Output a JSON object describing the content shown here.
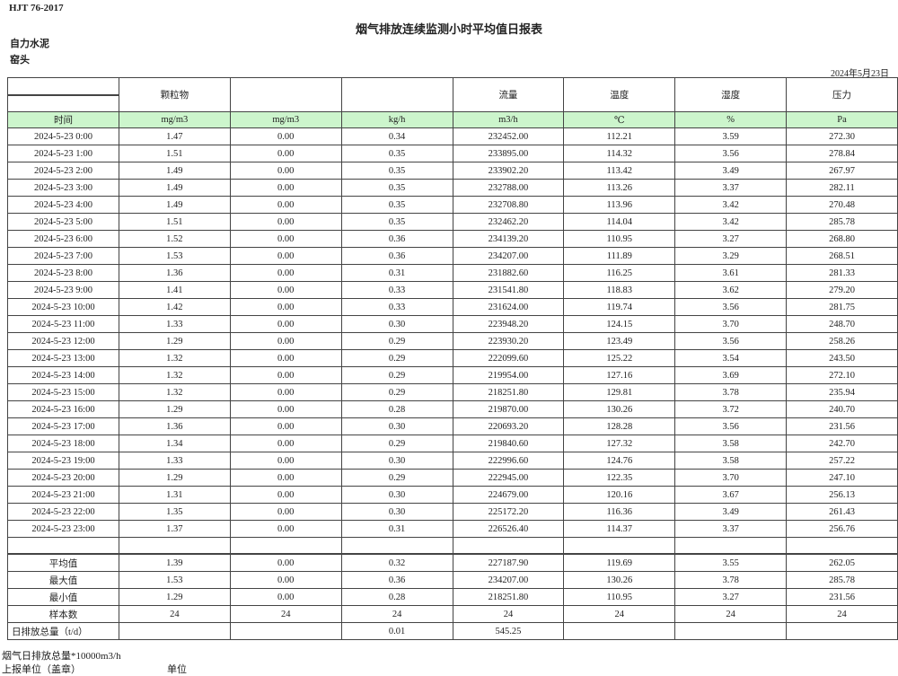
{
  "header": {
    "standard": "HJT  76-2017",
    "title": "烟气排放连续监测小时平均值日报表",
    "company": "自力水泥",
    "unit": "窑头",
    "date": "2024年5月23日"
  },
  "columns": [
    "",
    "颗粒物",
    "",
    "",
    "流量",
    "温度",
    "湿度",
    "压力"
  ],
  "units": [
    "时间",
    "mg/m3",
    "mg/m3",
    "kg/h",
    "m3/h",
    "℃",
    "%",
    "Pa"
  ],
  "rows": [
    [
      "2024-5-23 0:00",
      "1.47",
      "0.00",
      "0.34",
      "232452.00",
      "112.21",
      "3.59",
      "272.30"
    ],
    [
      "2024-5-23 1:00",
      "1.51",
      "0.00",
      "0.35",
      "233895.00",
      "114.32",
      "3.56",
      "278.84"
    ],
    [
      "2024-5-23 2:00",
      "1.49",
      "0.00",
      "0.35",
      "233902.20",
      "113.42",
      "3.49",
      "267.97"
    ],
    [
      "2024-5-23 3:00",
      "1.49",
      "0.00",
      "0.35",
      "232788.00",
      "113.26",
      "3.37",
      "282.11"
    ],
    [
      "2024-5-23 4:00",
      "1.49",
      "0.00",
      "0.35",
      "232708.80",
      "113.96",
      "3.42",
      "270.48"
    ],
    [
      "2024-5-23 5:00",
      "1.51",
      "0.00",
      "0.35",
      "232462.20",
      "114.04",
      "3.42",
      "285.78"
    ],
    [
      "2024-5-23 6:00",
      "1.52",
      "0.00",
      "0.36",
      "234139.20",
      "110.95",
      "3.27",
      "268.80"
    ],
    [
      "2024-5-23 7:00",
      "1.53",
      "0.00",
      "0.36",
      "234207.00",
      "111.89",
      "3.29",
      "268.51"
    ],
    [
      "2024-5-23 8:00",
      "1.36",
      "0.00",
      "0.31",
      "231882.60",
      "116.25",
      "3.61",
      "281.33"
    ],
    [
      "2024-5-23 9:00",
      "1.41",
      "0.00",
      "0.33",
      "231541.80",
      "118.83",
      "3.62",
      "279.20"
    ],
    [
      "2024-5-23 10:00",
      "1.42",
      "0.00",
      "0.33",
      "231624.00",
      "119.74",
      "3.56",
      "281.75"
    ],
    [
      "2024-5-23 11:00",
      "1.33",
      "0.00",
      "0.30",
      "223948.20",
      "124.15",
      "3.70",
      "248.70"
    ],
    [
      "2024-5-23 12:00",
      "1.29",
      "0.00",
      "0.29",
      "223930.20",
      "123.49",
      "3.56",
      "258.26"
    ],
    [
      "2024-5-23 13:00",
      "1.32",
      "0.00",
      "0.29",
      "222099.60",
      "125.22",
      "3.54",
      "243.50"
    ],
    [
      "2024-5-23 14:00",
      "1.32",
      "0.00",
      "0.29",
      "219954.00",
      "127.16",
      "3.69",
      "272.10"
    ],
    [
      "2024-5-23 15:00",
      "1.32",
      "0.00",
      "0.29",
      "218251.80",
      "129.81",
      "3.78",
      "235.94"
    ],
    [
      "2024-5-23 16:00",
      "1.29",
      "0.00",
      "0.28",
      "219870.00",
      "130.26",
      "3.72",
      "240.70"
    ],
    [
      "2024-5-23 17:00",
      "1.36",
      "0.00",
      "0.30",
      "220693.20",
      "128.28",
      "3.56",
      "231.56"
    ],
    [
      "2024-5-23 18:00",
      "1.34",
      "0.00",
      "0.29",
      "219840.60",
      "127.32",
      "3.58",
      "242.70"
    ],
    [
      "2024-5-23 19:00",
      "1.33",
      "0.00",
      "0.30",
      "222996.60",
      "124.76",
      "3.58",
      "257.22"
    ],
    [
      "2024-5-23 20:00",
      "1.29",
      "0.00",
      "0.29",
      "222945.00",
      "122.35",
      "3.70",
      "247.10"
    ],
    [
      "2024-5-23 21:00",
      "1.31",
      "0.00",
      "0.30",
      "224679.00",
      "120.16",
      "3.67",
      "256.13"
    ],
    [
      "2024-5-23 22:00",
      "1.35",
      "0.00",
      "0.30",
      "225172.20",
      "116.36",
      "3.49",
      "261.43"
    ],
    [
      "2024-5-23 23:00",
      "1.37",
      "0.00",
      "0.31",
      "226526.40",
      "114.37",
      "3.37",
      "256.76"
    ]
  ],
  "stats": [
    [
      "平均值",
      "1.39",
      "0.00",
      "0.32",
      "227187.90",
      "119.69",
      "3.55",
      "262.05"
    ],
    [
      "最大值",
      "1.53",
      "0.00",
      "0.36",
      "234207.00",
      "130.26",
      "3.78",
      "285.78"
    ],
    [
      "最小值",
      "1.29",
      "0.00",
      "0.28",
      "218251.80",
      "110.95",
      "3.27",
      "231.56"
    ],
    [
      "样本数",
      "24",
      "24",
      "24",
      "24",
      "24",
      "24",
      "24"
    ],
    [
      "日排放总量（t/d）",
      "",
      "",
      "0.01",
      "545.25",
      "",
      "",
      ""
    ]
  ],
  "footer": {
    "note": "烟气日排放总量*10000m3/h",
    "reporter_label": "上报单位（盖章）",
    "reporter_value": "单位"
  },
  "colors": {
    "units_row_bg": "#ccf5cc",
    "border": "#444444"
  }
}
